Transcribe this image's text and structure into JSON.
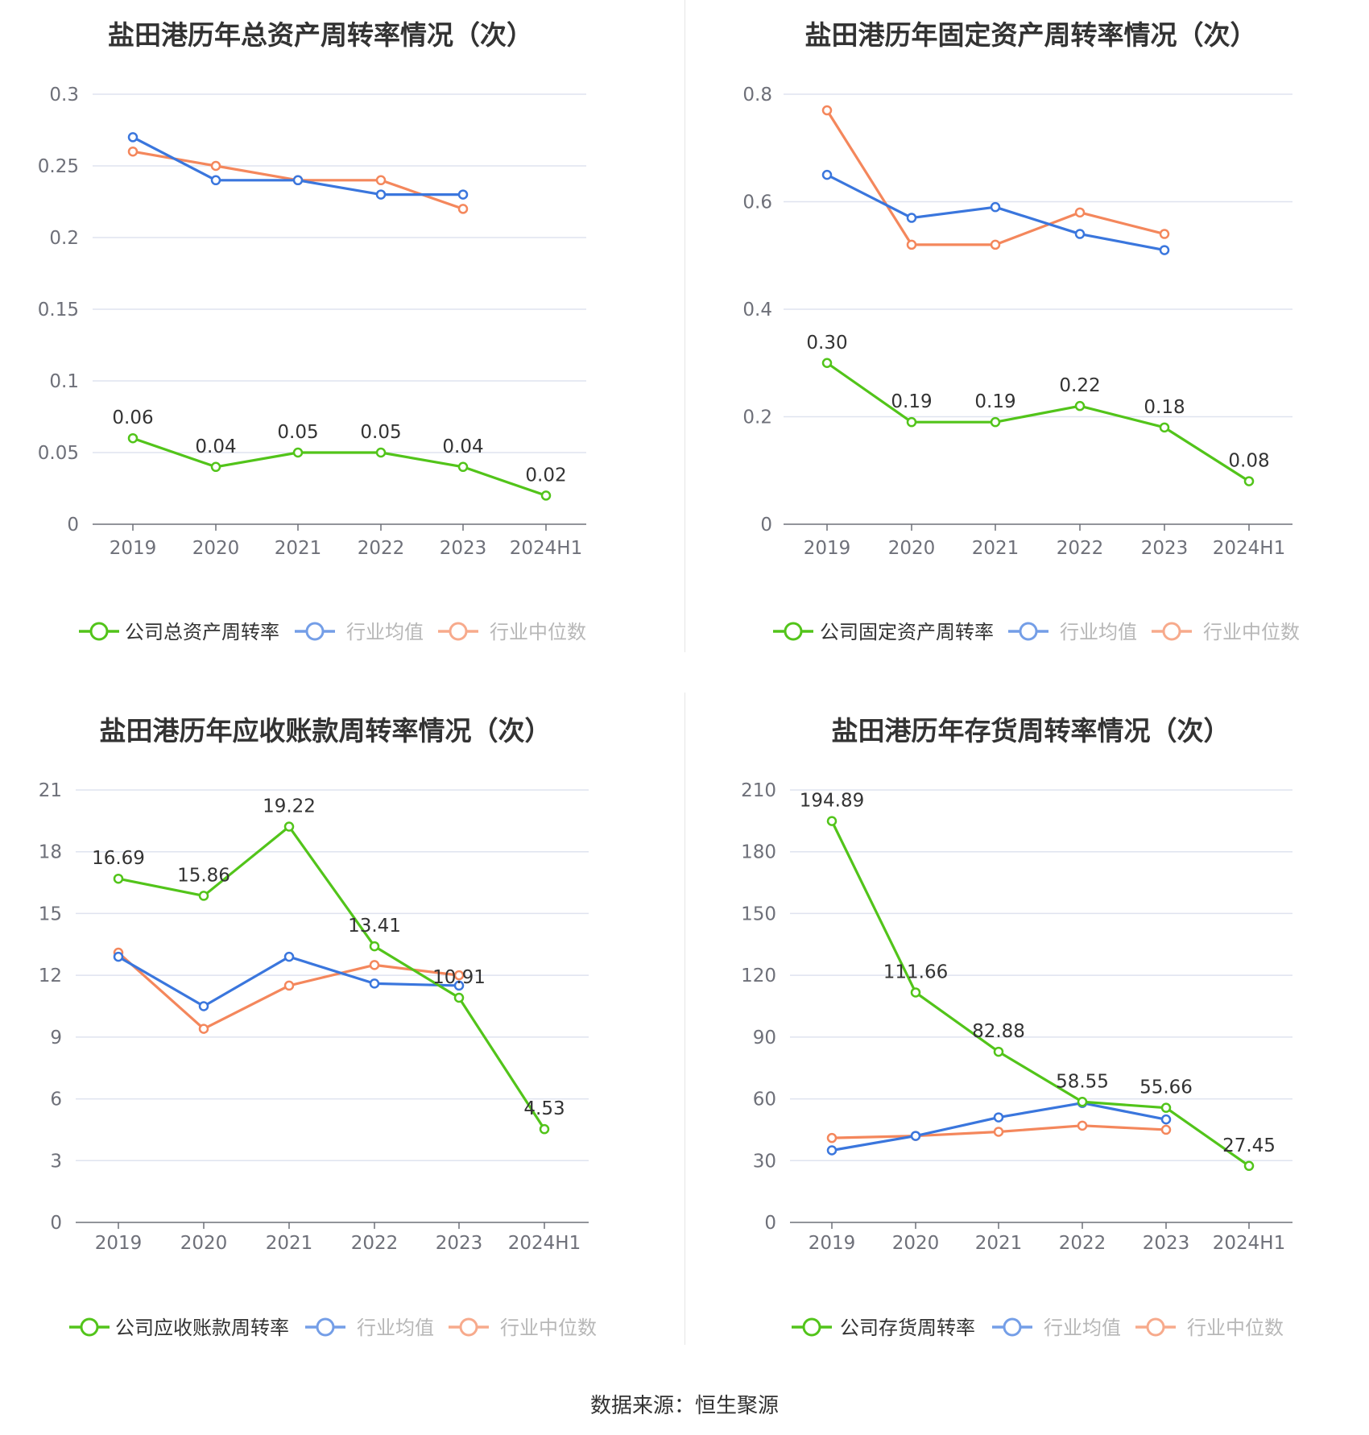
{
  "source": "数据来源：恒生聚源",
  "colors": {
    "company": "#52c41a",
    "average": "#3a76dd",
    "median": "#f4875c",
    "grid": "#dfe3ef",
    "axis": "#6e7079",
    "text": "#333333"
  },
  "chart_data": [
    {
      "type": "line",
      "title": "盐田港历年总资产周转率情况（次）",
      "categories": [
        "2019",
        "2020",
        "2021",
        "2022",
        "2023",
        "2024H1"
      ],
      "y_ticks": [
        "0",
        "0.05",
        "0.1",
        "0.15",
        "0.2",
        "0.25",
        "0.3"
      ],
      "ylim": [
        0,
        0.3
      ],
      "grid": true,
      "legend_position": "bottom",
      "series": [
        {
          "name": "公司总资产周转率",
          "role": "company",
          "values": [
            0.06,
            0.04,
            0.05,
            0.05,
            0.04,
            0.02
          ],
          "labels": [
            "0.06",
            "0.04",
            "0.05",
            "0.05",
            "0.04",
            "0.02"
          ]
        },
        {
          "name": "行业均值",
          "role": "average",
          "values": [
            0.27,
            0.24,
            0.24,
            0.23,
            0.23,
            null
          ]
        },
        {
          "name": "行业中位数",
          "role": "median",
          "values": [
            0.26,
            0.25,
            0.24,
            0.24,
            0.22,
            null
          ]
        }
      ]
    },
    {
      "type": "line",
      "title": "盐田港历年固定资产周转率情况（次）",
      "categories": [
        "2019",
        "2020",
        "2021",
        "2022",
        "2023",
        "2024H1"
      ],
      "y_ticks": [
        "0",
        "0.2",
        "0.4",
        "0.6",
        "0.8"
      ],
      "ylim": [
        0,
        0.8
      ],
      "grid": true,
      "legend_position": "bottom",
      "series": [
        {
          "name": "公司固定资产周转率",
          "role": "company",
          "values": [
            0.3,
            0.19,
            0.19,
            0.22,
            0.18,
            0.08
          ],
          "labels": [
            "0.30",
            "0.19",
            "0.19",
            "0.22",
            "0.18",
            "0.08"
          ]
        },
        {
          "name": "行业均值",
          "role": "average",
          "values": [
            0.65,
            0.57,
            0.59,
            0.54,
            0.51,
            null
          ]
        },
        {
          "name": "行业中位数",
          "role": "median",
          "values": [
            0.77,
            0.52,
            0.52,
            0.58,
            0.54,
            null
          ]
        }
      ]
    },
    {
      "type": "line",
      "title": "盐田港历年应收账款周转率情况（次）",
      "categories": [
        "2019",
        "2020",
        "2021",
        "2022",
        "2023",
        "2024H1"
      ],
      "y_ticks": [
        "0",
        "3",
        "6",
        "9",
        "12",
        "15",
        "18",
        "21"
      ],
      "ylim": [
        0,
        21
      ],
      "grid": true,
      "legend_position": "bottom",
      "series": [
        {
          "name": "公司应收账款周转率",
          "role": "company",
          "values": [
            16.69,
            15.86,
            19.22,
            13.41,
            10.91,
            4.53
          ],
          "labels": [
            "16.69",
            "15.86",
            "19.22",
            "13.41",
            "10.91",
            "4.53"
          ]
        },
        {
          "name": "行业均值",
          "role": "average",
          "values": [
            12.9,
            10.5,
            12.9,
            11.6,
            11.5,
            null
          ]
        },
        {
          "name": "行业中位数",
          "role": "median",
          "values": [
            13.1,
            9.4,
            11.5,
            12.5,
            12.0,
            null
          ]
        }
      ]
    },
    {
      "type": "line",
      "title": "盐田港历年存货周转率情况（次）",
      "categories": [
        "2019",
        "2020",
        "2021",
        "2022",
        "2023",
        "2024H1"
      ],
      "y_ticks": [
        "0",
        "30",
        "60",
        "90",
        "120",
        "150",
        "180",
        "210"
      ],
      "ylim": [
        0,
        210
      ],
      "grid": true,
      "legend_position": "bottom",
      "series": [
        {
          "name": "公司存货周转率",
          "role": "company",
          "values": [
            194.89,
            111.66,
            82.88,
            58.55,
            55.66,
            27.45
          ],
          "labels": [
            "194.89",
            "111.66",
            "82.88",
            "58.55",
            "55.66",
            "27.45"
          ]
        },
        {
          "name": "行业均值",
          "role": "average",
          "values": [
            35,
            42,
            51,
            58,
            50,
            null
          ]
        },
        {
          "name": "行业中位数",
          "role": "median",
          "values": [
            41,
            42,
            44,
            47,
            45,
            null
          ]
        }
      ]
    }
  ]
}
